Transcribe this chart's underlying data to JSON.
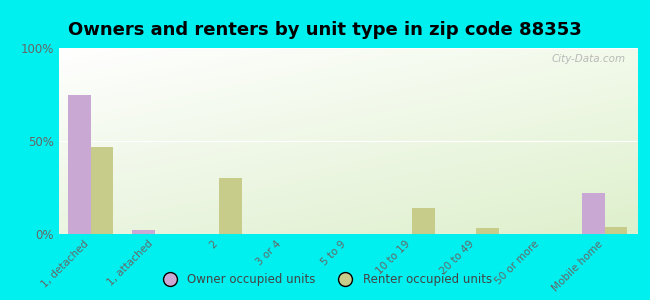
{
  "title": "Owners and renters by unit type in zip code 88353",
  "categories": [
    "1, detached",
    "1, attached",
    "2",
    "3 or 4",
    "5 to 9",
    "10 to 19",
    "20 to 49",
    "50 or more",
    "Mobile home"
  ],
  "owner_values": [
    75,
    2,
    0,
    0,
    0,
    0,
    0,
    0,
    22
  ],
  "renter_values": [
    47,
    0,
    30,
    0,
    0,
    14,
    3,
    0,
    4
  ],
  "owner_color": "#c9a8d4",
  "renter_color": "#c8cc8a",
  "background_color": "#00efef",
  "ylim": [
    0,
    100
  ],
  "yticks": [
    0,
    50,
    100
  ],
  "ytick_labels": [
    "0%",
    "50%",
    "100%"
  ],
  "legend_owner": "Owner occupied units",
  "legend_renter": "Renter occupied units",
  "bar_width": 0.35,
  "title_fontsize": 13,
  "watermark": "City-Data.com"
}
